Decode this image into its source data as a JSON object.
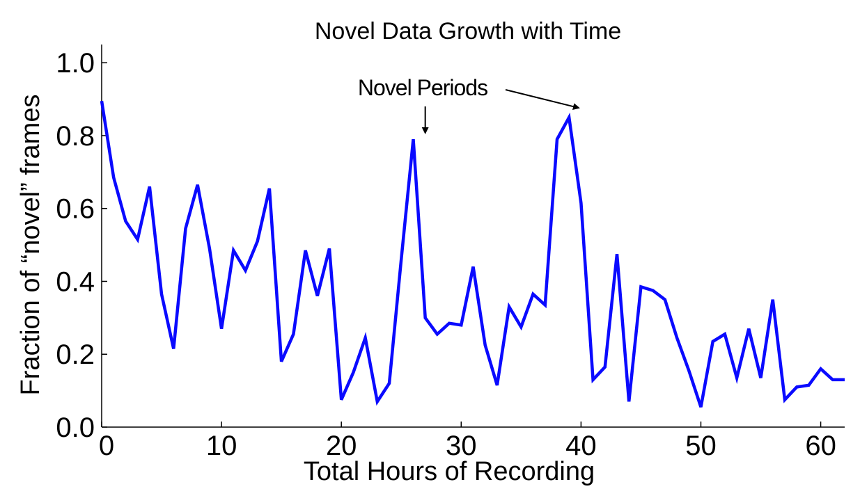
{
  "chart_data": {
    "type": "line",
    "title": "Novel Data Growth with Time",
    "xlabel": "Total Hours of Recording",
    "ylabel": "Fraction of “novel” frames",
    "xlim": [
      0,
      62
    ],
    "ylim": [
      0,
      1.05
    ],
    "xticks": [
      0,
      10,
      20,
      30,
      40,
      50,
      60
    ],
    "yticks": [
      "0.0",
      "0.2",
      "0.4",
      "0.6",
      "0.8",
      "1.0"
    ],
    "yticks_values": [
      0,
      0.2,
      0.4,
      0.6,
      0.8,
      1.0
    ],
    "series_color": "#0a0aff",
    "grid": false,
    "x": [
      0,
      1,
      2,
      3,
      4,
      5,
      6,
      7,
      8,
      9,
      10,
      11,
      12,
      13,
      14,
      15,
      16,
      17,
      18,
      19,
      20,
      21,
      22,
      23,
      24,
      25,
      26,
      27,
      28,
      29,
      30,
      31,
      32,
      33,
      34,
      35,
      36,
      37,
      38,
      39,
      40,
      41,
      42,
      43,
      44,
      45,
      46,
      47,
      48,
      49,
      50,
      51,
      52,
      53,
      54,
      55,
      56,
      57,
      58,
      59,
      60,
      61,
      62
    ],
    "y": [
      0.895,
      0.685,
      0.565,
      0.515,
      0.66,
      0.365,
      0.215,
      0.545,
      0.665,
      0.49,
      0.27,
      0.485,
      0.43,
      0.51,
      0.655,
      0.18,
      0.255,
      0.485,
      0.36,
      0.49,
      0.075,
      0.15,
      0.245,
      0.07,
      0.12,
      0.46,
      0.79,
      0.3,
      0.255,
      0.285,
      0.28,
      0.44,
      0.225,
      0.115,
      0.33,
      0.275,
      0.365,
      0.335,
      0.79,
      0.85,
      0.615,
      0.13,
      0.165,
      0.475,
      0.07,
      0.385,
      0.375,
      0.35,
      0.245,
      0.155,
      0.055,
      0.235,
      0.255,
      0.135,
      0.27,
      0.135,
      0.35,
      0.075,
      0.11,
      0.115,
      0.16,
      0.13,
      0.13
    ],
    "annotations": [
      {
        "text": "Novel Periods",
        "targets": [
          {
            "x": 27,
            "y": 0.8
          },
          {
            "x": 39.8,
            "y": 0.88
          }
        ]
      }
    ]
  }
}
